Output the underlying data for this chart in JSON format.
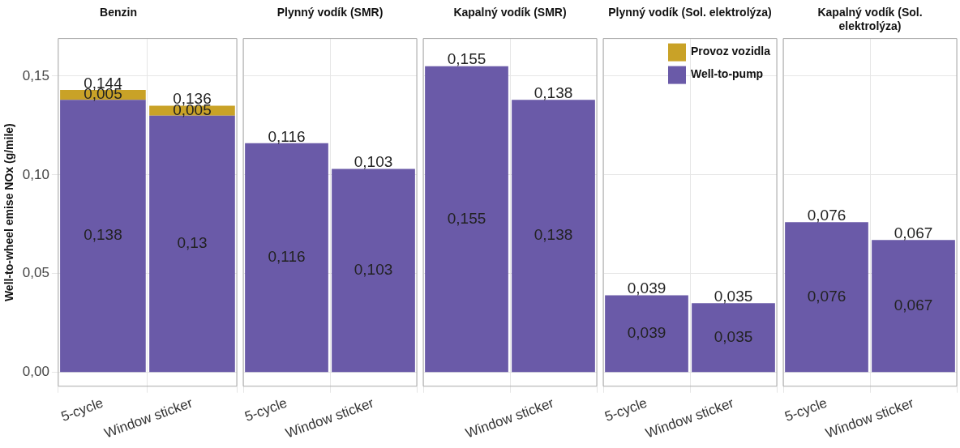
{
  "chart_data": [
    {
      "type": "bar",
      "title": "Benzin",
      "ylabel": "Well-to-wheel emise NOx (g/mile)",
      "categories": [
        "5-cycle",
        "Window sticker"
      ],
      "stacked": true,
      "grid": true,
      "legend": false,
      "ylim": [
        -0.007,
        0.169
      ],
      "yticks": [
        {
          "value": 0,
          "label": "0,00"
        },
        {
          "value": 0.05,
          "label": "0,05"
        },
        {
          "value": 0.1,
          "label": "0,10"
        },
        {
          "value": 0.15,
          "label": "0,15"
        }
      ],
      "series": [
        {
          "color": "#6a5aa8",
          "values": [
            0.138,
            0.13
          ],
          "value_labels": [
            "0,138",
            "0,13"
          ]
        },
        {
          "color": "#c9a227",
          "values": [
            0.005,
            0.005
          ],
          "value_labels": [
            "0,005",
            "0,005"
          ]
        }
      ],
      "totals": [
        "0,144",
        "0,136"
      ]
    },
    {
      "type": "bar",
      "title": "Plynný vodík (SMR)",
      "categories": [
        "5-cycle",
        "Window sticker"
      ],
      "stacked": true,
      "grid": true,
      "legend": false,
      "tick_labels": "x",
      "ylim": [
        -0.007,
        0.169
      ],
      "yticks": [
        0,
        0.05,
        0.1,
        0.15
      ],
      "series": [
        {
          "color": "#6a5aa8",
          "values": [
            0.116,
            0.103
          ],
          "value_labels": [
            "0,116",
            "0,103"
          ]
        }
      ],
      "totals": [
        "0,116",
        "0,103"
      ]
    },
    {
      "type": "bar",
      "title": "Kapalný vodík (SMR)",
      "categories": [
        null,
        "Window sticker"
      ],
      "stacked": true,
      "grid": true,
      "legend": false,
      "tick_labels": "x",
      "ylim": [
        -0.007,
        0.169
      ],
      "yticks": [
        0,
        0.05,
        0.1,
        0.15
      ],
      "series": [
        {
          "color": "#6a5aa8",
          "values": [
            0.155,
            0.138
          ],
          "value_labels": [
            "0,155",
            "0,138"
          ]
        }
      ],
      "totals": [
        "0,155",
        "0,138"
      ]
    },
    {
      "type": "bar",
      "title": "Plynný vodík (Sol. elektrolýza)",
      "categories": [
        "5-cycle",
        "Window sticker"
      ],
      "stacked": true,
      "grid": true,
      "legend": "top right",
      "tick_labels": "x",
      "ylim": [
        -0.007,
        0.169
      ],
      "yticks": [
        0,
        0.05,
        0.1,
        0.15
      ],
      "series": [
        {
          "name": "Well-to-pump",
          "color": "#6a5aa8",
          "values": [
            0.039,
            0.035
          ],
          "value_labels": [
            "0,039",
            "0,035"
          ]
        },
        {
          "name": "Provoz vozidla",
          "color": "#c9a227",
          "values": [
            null,
            null
          ]
        }
      ],
      "totals": [
        "0,039",
        "0,035"
      ]
    },
    {
      "type": "bar",
      "title": "Kapalný vodík (Sol. elektrolýza)",
      "categories": [
        "5-cycle",
        "Window sticker"
      ],
      "stacked": true,
      "grid": true,
      "legend": false,
      "tick_labels": "x",
      "ylim": [
        -0.007,
        0.169
      ],
      "yticks": [
        0,
        0.05,
        0.1,
        0.15
      ],
      "series": [
        {
          "color": "#6a5aa8",
          "values": [
            0.076,
            0.067
          ],
          "value_labels": [
            "0,076",
            "0,067"
          ]
        }
      ],
      "totals": [
        "0,076",
        "0,067"
      ]
    }
  ]
}
